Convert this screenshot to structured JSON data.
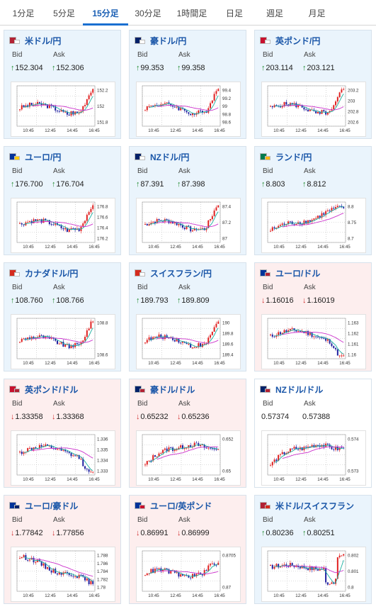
{
  "tabs": [
    {
      "label": "1分足",
      "active": false
    },
    {
      "label": "5分足",
      "active": false
    },
    {
      "label": "15分足",
      "active": true
    },
    {
      "label": "30分足",
      "active": false
    },
    {
      "label": "1時間足",
      "active": false
    },
    {
      "label": "日足",
      "active": false
    },
    {
      "label": "週足",
      "active": false
    },
    {
      "label": "月足",
      "active": false
    }
  ],
  "labels": {
    "bid": "Bid",
    "ask": "Ask"
  },
  "colors": {
    "up_bg": "#eaf4fc",
    "down_bg": "#fdeeee",
    "candle_up": "#e02020",
    "candle_down": "#2020a0",
    "ma_short": "#1ab0a0",
    "ma_long": "#cc33cc",
    "link": "#1a56a8"
  },
  "cards": [
    {
      "pair": "米ドル/円",
      "flag": [
        "#b22234",
        "#ffffff"
      ],
      "dir": "up",
      "bid": "152.304",
      "ask": "152.306",
      "ticks": [
        "152.2",
        "152",
        "151.8"
      ],
      "xlabels": [
        "10:45",
        "12:45",
        "14:45",
        "16:45"
      ],
      "trend": "up-late"
    },
    {
      "pair": "豪ドル/円",
      "flag": [
        "#012169",
        "#ffffff"
      ],
      "dir": "up",
      "bid": "99.353",
      "ask": "99.358",
      "ticks": [
        "99.4",
        "99.2",
        "99",
        "98.8",
        "98.6"
      ],
      "xlabels": [
        "10:45",
        "12:45",
        "14:45",
        "16:45"
      ],
      "trend": "up-late"
    },
    {
      "pair": "英ポンド/円",
      "flag": [
        "#c8102e",
        "#ffffff"
      ],
      "dir": "up",
      "bid": "203.114",
      "ask": "203.121",
      "ticks": [
        "203.2",
        "203",
        "202.8",
        "202.6"
      ],
      "xlabels": [
        "10:45",
        "12:45",
        "14:45",
        "16:45"
      ],
      "trend": "up-late"
    },
    {
      "pair": "ユーロ/円",
      "flag": [
        "#003399",
        "#ffcc00"
      ],
      "dir": "up",
      "bid": "176.700",
      "ask": "176.704",
      "ticks": [
        "176.8",
        "176.6",
        "176.4",
        "176.2"
      ],
      "xlabels": [
        "10:45",
        "12:45",
        "14:45",
        "16:45"
      ],
      "trend": "up-late"
    },
    {
      "pair": "NZドル/円",
      "flag": [
        "#012169",
        "#ffffff"
      ],
      "dir": "up",
      "bid": "87.391",
      "ask": "87.398",
      "ticks": [
        "87.4",
        "87.2",
        "87"
      ],
      "xlabels": [
        "10:45",
        "12:45",
        "14:45",
        "16:45"
      ],
      "trend": "up-late"
    },
    {
      "pair": "ランド/円",
      "flag": [
        "#007a4d",
        "#ffb612"
      ],
      "dir": "up",
      "bid": "8.803",
      "ask": "8.812",
      "ticks": [
        "8.8",
        "8.75",
        "8.7"
      ],
      "xlabels": [
        "10:45",
        "12:45",
        "14:45",
        "16:45"
      ],
      "trend": "up-steady"
    },
    {
      "pair": "カナダドル/円",
      "flag": [
        "#d52b1e",
        "#ffffff"
      ],
      "dir": "up",
      "bid": "108.760",
      "ask": "108.766",
      "ticks": [
        "108.8",
        "108.6"
      ],
      "xlabels": [
        "10:45",
        "12:45",
        "14:45",
        "16:45"
      ],
      "trend": "up-late"
    },
    {
      "pair": "スイスフラン/円",
      "flag": [
        "#d52b1e",
        "#ffffff"
      ],
      "dir": "up",
      "bid": "189.793",
      "ask": "189.809",
      "ticks": [
        "190",
        "189.8",
        "189.6",
        "189.4"
      ],
      "xlabels": [
        "10:45",
        "12:45",
        "14:45",
        "16:45"
      ],
      "trend": "up-late"
    },
    {
      "pair": "ユーロ/ドル",
      "flag": [
        "#003399",
        "#b22234"
      ],
      "dir": "down",
      "bid": "1.16016",
      "ask": "1.16019",
      "ticks": [
        "1.163",
        "1.162",
        "1.161",
        "1.16"
      ],
      "xlabels": [
        "10:45",
        "12:45",
        "14:45",
        "16:45"
      ],
      "trend": "down-late"
    },
    {
      "pair": "英ポンド/ドル",
      "flag": [
        "#c8102e",
        "#b22234"
      ],
      "dir": "down",
      "bid": "1.33358",
      "ask": "1.33368",
      "ticks": [
        "1.336",
        "1.335",
        "1.334",
        "1.333"
      ],
      "xlabels": [
        "10:45",
        "12:45",
        "14:45",
        "16:45"
      ],
      "trend": "down-late"
    },
    {
      "pair": "豪ドル/ドル",
      "flag": [
        "#012169",
        "#b22234"
      ],
      "dir": "down",
      "bid": "0.65232",
      "ask": "0.65236",
      "ticks": [
        "0.652",
        "0.65"
      ],
      "xlabels": [
        "10:45",
        "12:45",
        "14:45",
        "16:45"
      ],
      "trend": "up-early"
    },
    {
      "pair": "NZドル/ドル",
      "flag": [
        "#012169",
        "#b22234"
      ],
      "dir": "none",
      "bid": "0.57374",
      "ask": "0.57388",
      "ticks": [
        "0.574",
        "0.573"
      ],
      "xlabels": [
        "10:45",
        "12:45",
        "14:45",
        "16:45"
      ],
      "trend": "up-early"
    },
    {
      "pair": "ユーロ/豪ドル",
      "flag": [
        "#003399",
        "#012169"
      ],
      "dir": "down",
      "bid": "1.77842",
      "ask": "1.77856",
      "ticks": [
        "1.788",
        "1.786",
        "1.784",
        "1.782",
        "1.78"
      ],
      "xlabels": [
        "10:45",
        "12:45",
        "14:45",
        "16:45"
      ],
      "trend": "down-steady"
    },
    {
      "pair": "ユーロ/英ポンド",
      "flag": [
        "#003399",
        "#c8102e"
      ],
      "dir": "down",
      "bid": "0.86991",
      "ask": "0.86999",
      "ticks": [
        "0.8705",
        "0.87"
      ],
      "xlabels": [
        "10:45",
        "12:45",
        "14:45",
        "16:45"
      ],
      "trend": "flat"
    },
    {
      "pair": "米ドル/スイスフラン",
      "flag": [
        "#b22234",
        "#d52b1e"
      ],
      "dir": "up",
      "bid": "0.80236",
      "ask": "0.80251",
      "ticks": [
        "0.802",
        "0.801",
        "0.8"
      ],
      "xlabels": [
        "10:45",
        "12:45",
        "14:45",
        "16:45"
      ],
      "trend": "down-late-up"
    }
  ]
}
